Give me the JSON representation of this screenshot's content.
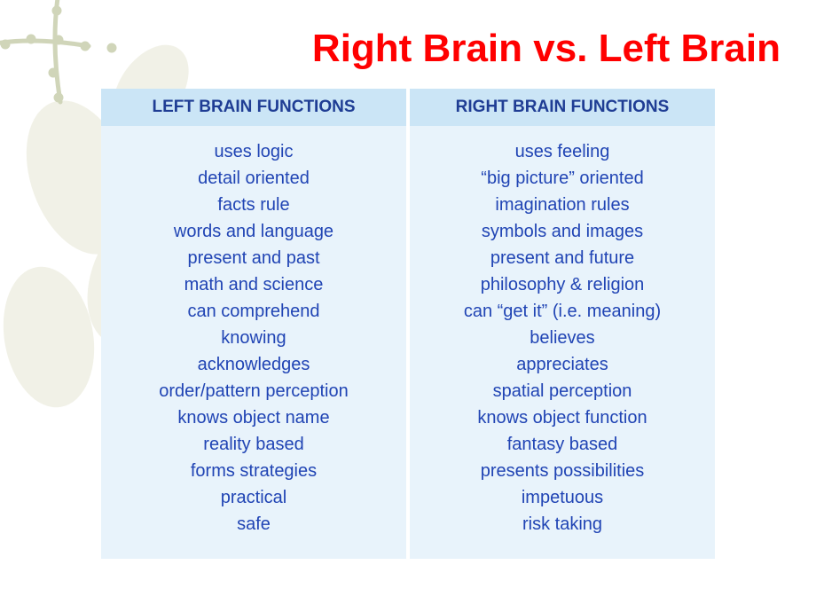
{
  "title": "Right Brain vs. Left Brain",
  "columns": {
    "left_header": "LEFT BRAIN FUNCTIONS",
    "right_header": "RIGHT BRAIN FUNCTIONS"
  },
  "left_functions": [
    "uses logic",
    "detail oriented",
    "facts rule",
    "words and language",
    "present and past",
    "math and science",
    "can comprehend",
    "knowing",
    "acknowledges",
    "order/pattern perception",
    "knows object name",
    "reality based",
    "forms strategies",
    "practical",
    "safe"
  ],
  "right_functions": [
    "uses feeling",
    "“big picture” oriented",
    "imagination rules",
    "symbols and images",
    "present and future",
    "philosophy & religion",
    "can “get it” (i.e. meaning)",
    "believes",
    "appreciates",
    "spatial perception",
    "knows object function",
    "fantasy based",
    "presents possibilities",
    "impetuous",
    "risk taking"
  ],
  "colors": {
    "title": "#ff0000",
    "header_bg": "#cbe5f6",
    "header_text": "#1f3d94",
    "cell_bg": "#e8f3fb",
    "cell_text": "#2044b4",
    "decoration_line": "#7a8a3a",
    "decoration_leaf": "#d9d9bc"
  }
}
